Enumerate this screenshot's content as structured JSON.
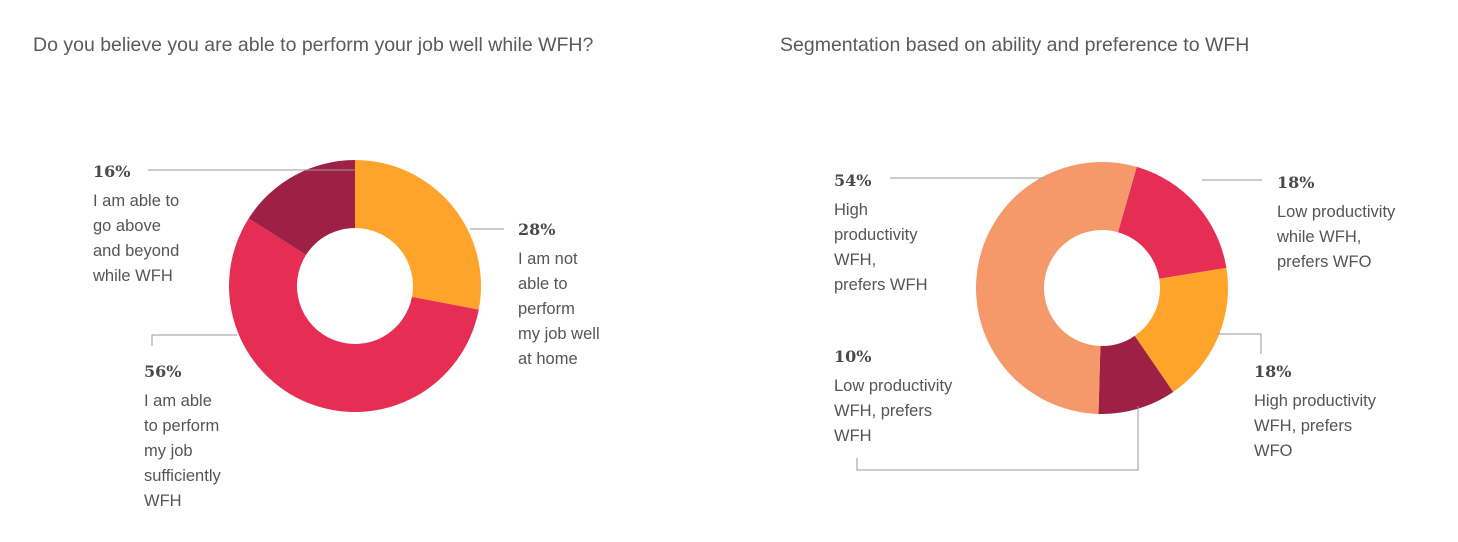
{
  "chart_data": [
    {
      "type": "pie",
      "title": "Do you believe you are able to perform your job well while WFH?",
      "slices": [
        {
          "value": 28,
          "label": "28%",
          "text": "I am not\nable to\nperform\nmy job well\nat home",
          "color": "#FFA42B"
        },
        {
          "value": 56,
          "label": "56%",
          "text": "I am able\nto perform\nmy job\nsufficiently\nWFH",
          "color": "#E62D54"
        },
        {
          "value": 16,
          "label": "16%",
          "text": "I am able to\ngo above\nand beyond\nwhile WFH",
          "color": "#9E2145"
        }
      ]
    },
    {
      "type": "pie",
      "title": "Segmentation based on ability and preference to WFH",
      "slices": [
        {
          "value": 18,
          "label": "18%",
          "text": "Low productivity\nwhile WFH,\nprefers WFO",
          "color": "#E62D54"
        },
        {
          "value": 18,
          "label": "18%",
          "text": "High productivity\nWFH, prefers\nWFO",
          "color": "#FFA42B"
        },
        {
          "value": 10,
          "label": "10%",
          "text": "Low productivity\nWFH, prefers\nWFH",
          "color": "#9E2145"
        },
        {
          "value": 54,
          "label": "54%",
          "text": "High\nproductivity\nWFH,\nprefers WFH",
          "color": "#F5996A"
        }
      ]
    }
  ]
}
